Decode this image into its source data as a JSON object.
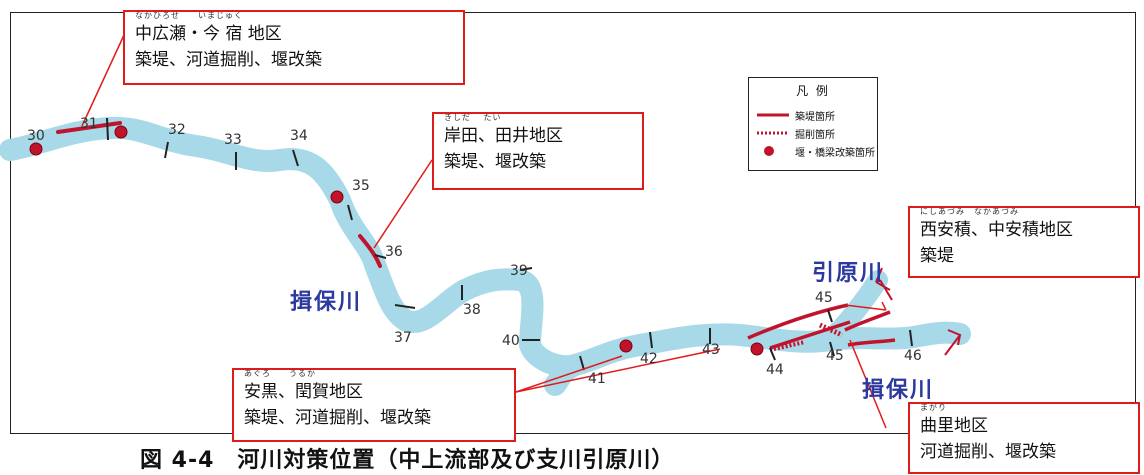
{
  "legend": {
    "title": "凡 例",
    "items": [
      {
        "label": "築堤箇所",
        "symbol": "solid-red-line"
      },
      {
        "label": "掘削箇所",
        "symbol": "dotted-red-line"
      },
      {
        "label": "堰・橋梁改築箇所",
        "symbol": "red-dot"
      }
    ]
  },
  "rivers": {
    "ibo_left": "揖保川",
    "ibo_right": "揖保川",
    "hikihara": "引原川"
  },
  "distance_markers": [
    "30",
    "31",
    "32",
    "33",
    "34",
    "35",
    "36",
    "37",
    "38",
    "39",
    "40",
    "41",
    "42",
    "43",
    "44",
    "45",
    "45",
    "46"
  ],
  "callouts": {
    "nakahirose": {
      "ruby": "なかひろせ　　いまじゅく",
      "area": "中広瀬・今 宿 地区",
      "works": "築堤、河道掘削、堰改築"
    },
    "kishida": {
      "ruby": "きしだ　 たい",
      "area": "岸田、田井地区",
      "works": "築堤、堰改築"
    },
    "nishiazumi": {
      "ruby": "にしあづみ　なかあづみ",
      "area": "西安積、中安積地区",
      "works": "築堤"
    },
    "aguro": {
      "ruby": "あぐろ　　うるか",
      "area": "安黒、閏賀地区",
      "works": "築堤、河道掘削、堰改築"
    },
    "magari": {
      "ruby": "まがり",
      "area": "曲里地区",
      "works": "河道掘削、堰改築"
    }
  },
  "caption": "図 4-4　河川対策位置（中上流部及び支川引原川）",
  "colors": {
    "river": "#a8d9e8",
    "works": "#c0142c",
    "callout_border": "#e01b1b",
    "river_label": "#2c3aa0"
  }
}
